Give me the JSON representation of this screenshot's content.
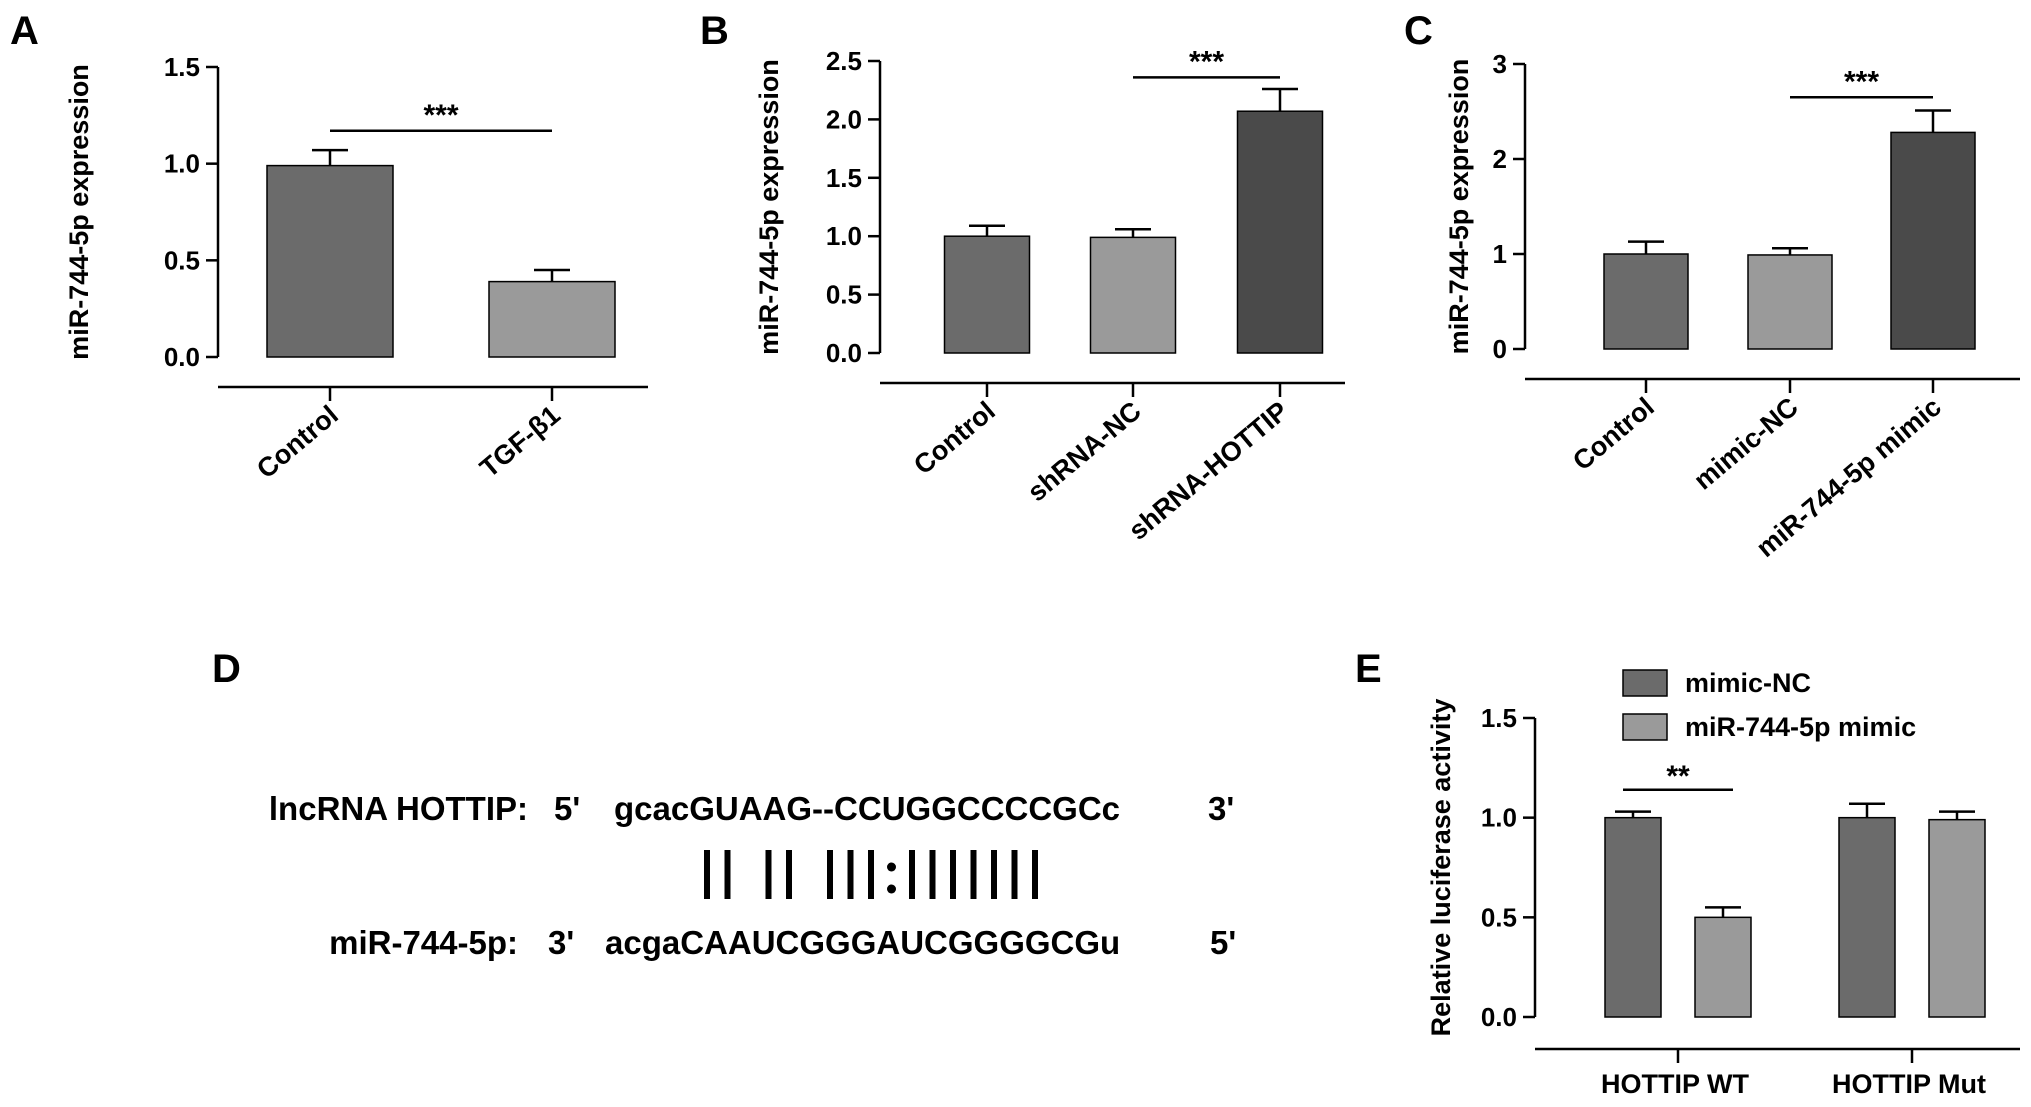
{
  "chart_data": [
    {
      "panel": "A",
      "type": "bar",
      "ylabel": "miR-744-5p expression",
      "ylim": [
        0,
        1.5
      ],
      "yticks": [
        "0.0",
        "0.5",
        "1.0",
        "1.5"
      ],
      "categories": [
        "Control",
        "TGF-β1"
      ],
      "values": [
        0.99,
        0.39
      ],
      "errors": [
        0.08,
        0.06
      ],
      "colors": [
        "#6b6b6b",
        "#9a9a9a"
      ],
      "significance": [
        {
          "from": 0,
          "to": 1,
          "label": "***",
          "y": 1.17
        }
      ]
    },
    {
      "panel": "B",
      "type": "bar",
      "ylabel": "miR-744-5p expression",
      "ylim": [
        0,
        2.5
      ],
      "yticks": [
        "0.0",
        "0.5",
        "1.0",
        "1.5",
        "2.0",
        "2.5"
      ],
      "categories": [
        "Control",
        "shRNA-NC",
        "shRNA-HOTTIP"
      ],
      "values": [
        1.0,
        0.99,
        2.07
      ],
      "errors": [
        0.09,
        0.07,
        0.19
      ],
      "colors": [
        "#6b6b6b",
        "#9a9a9a",
        "#4a4a4a"
      ],
      "significance": [
        {
          "from": 1,
          "to": 2,
          "label": "***",
          "y": 2.36
        }
      ]
    },
    {
      "panel": "C",
      "type": "bar",
      "ylabel": "miR-744-5p expression",
      "ylim": [
        0,
        3
      ],
      "yticks": [
        "0",
        "1",
        "2",
        "3"
      ],
      "categories": [
        "Control",
        "mimic-NC",
        "miR-744-5p mimic"
      ],
      "values": [
        1.0,
        0.99,
        2.28
      ],
      "errors": [
        0.13,
        0.07,
        0.23
      ],
      "colors": [
        "#6b6b6b",
        "#9a9a9a",
        "#4a4a4a"
      ],
      "significance": [
        {
          "from": 1,
          "to": 2,
          "label": "***",
          "y": 2.65
        }
      ]
    },
    {
      "panel": "E",
      "type": "bar",
      "ylabel": "Relative luciferase activity",
      "ylim": [
        0,
        1.5
      ],
      "yticks": [
        "0.0",
        "0.5",
        "1.0",
        "1.5"
      ],
      "categories": [
        "HOTTIP WT",
        "HOTTIP Mut"
      ],
      "legend": "top",
      "series": [
        {
          "name": "mimic-NC",
          "color": "#6b6b6b",
          "values": [
            1.0,
            1.0
          ],
          "errors": [
            0.03,
            0.07
          ]
        },
        {
          "name": "miR-744-5p mimic",
          "color": "#9a9a9a",
          "values": [
            0.5,
            0.99
          ],
          "errors": [
            0.05,
            0.04
          ]
        }
      ],
      "significance": [
        {
          "category": 0,
          "label": "**",
          "y": 1.14
        }
      ]
    }
  ],
  "panel_d": {
    "letter": "D",
    "top_label": "lncRNA HOTTIP:",
    "top_5prime": "5'",
    "top_seq": "gcacGUAAG--CCUGGCCCCGCc",
    "top_3prime": "3'",
    "pairing": "|| || |||:|||||||",
    "bottom_label": "miR-744-5p:",
    "bottom_3prime": "3'",
    "bottom_seq": "acgaCAAUCGGGAUCGGGGCGu",
    "bottom_5prime": "5'"
  }
}
